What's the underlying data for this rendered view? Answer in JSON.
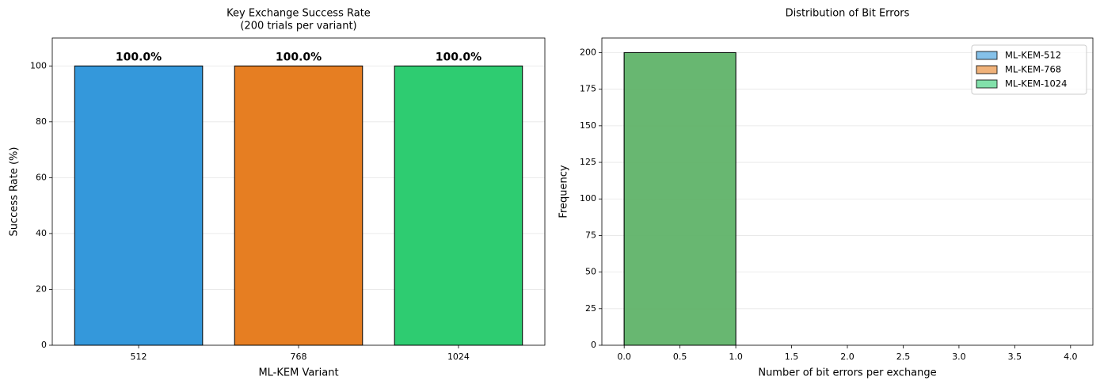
{
  "chart_data": [
    {
      "type": "bar",
      "title": [
        "Key Exchange Success Rate",
        "(200 trials per variant)"
      ],
      "xlabel": "ML-KEM Variant",
      "ylabel": "Success Rate (%)",
      "categories": [
        "512",
        "768",
        "1024"
      ],
      "values": [
        100,
        100,
        100
      ],
      "value_labels": [
        "100.0%",
        "100.0%",
        "100.0%"
      ],
      "colors": [
        "#3498db",
        "#e67e22",
        "#2ecc71"
      ],
      "ylim": [
        0,
        110
      ],
      "yticks": [
        0,
        20,
        40,
        60,
        80,
        100
      ],
      "grid": true
    },
    {
      "type": "histogram",
      "title": [
        "Distribution of Bit Errors"
      ],
      "xlabel": "Number of bit errors per exchange",
      "ylabel": "Frequency",
      "bins": [
        0,
        1,
        2,
        3,
        4
      ],
      "series": [
        {
          "name": "ML-KEM-512",
          "color": "#3498db",
          "values": [
            200,
            0,
            0,
            0
          ]
        },
        {
          "name": "ML-KEM-768",
          "color": "#e67e22",
          "values": [
            200,
            0,
            0,
            0
          ]
        },
        {
          "name": "ML-KEM-1024",
          "color": "#2ecc71",
          "values": [
            200,
            0,
            0,
            0
          ]
        }
      ],
      "xlim": [
        -0.2,
        4.2
      ],
      "xticks": [
        {
          "value": 0,
          "label": "0.0"
        },
        {
          "value": 0.5,
          "label": "0.5"
        },
        {
          "value": 1,
          "label": "1.0"
        },
        {
          "value": 1.5,
          "label": "1.5"
        },
        {
          "value": 2,
          "label": "2.0"
        },
        {
          "value": 2.5,
          "label": "2.5"
        },
        {
          "value": 3,
          "label": "3.0"
        },
        {
          "value": 3.5,
          "label": "3.5"
        },
        {
          "value": 4,
          "label": "4.0"
        }
      ],
      "ylim": [
        0,
        210
      ],
      "yticks": [
        0,
        25,
        50,
        75,
        100,
        125,
        150,
        175,
        200
      ],
      "grid": true,
      "legend": "upper right"
    }
  ]
}
